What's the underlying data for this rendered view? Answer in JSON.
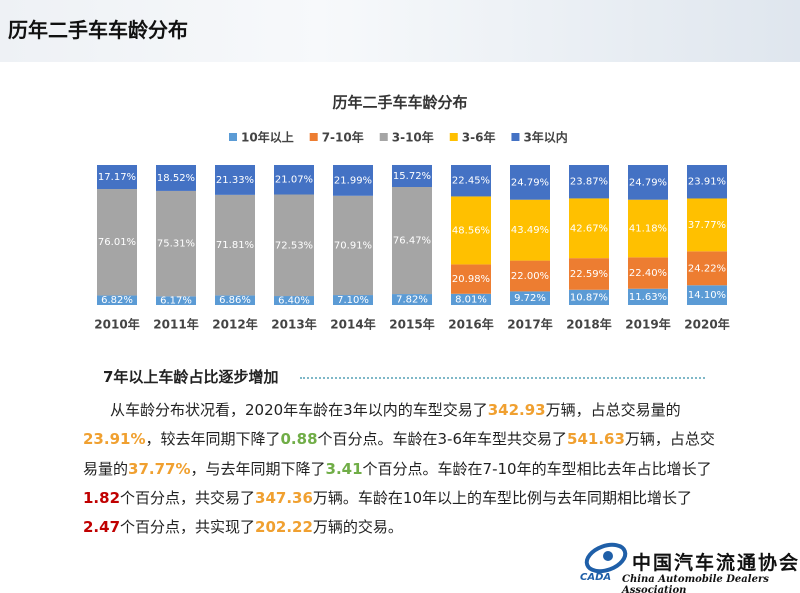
{
  "header": {
    "title": "历年二手车车龄分布"
  },
  "chart_data": {
    "type": "stacked_bar",
    "title": "历年二手车车龄分布",
    "categories": [
      "2010年",
      "2011年",
      "2012年",
      "2013年",
      "2014年",
      "2015年",
      "2016年",
      "2017年",
      "2018年",
      "2019年",
      "2020年"
    ],
    "ylim": [
      0,
      100
    ],
    "series": [
      {
        "name": "10年以上",
        "color": "#5b9bd5",
        "values": [
          6.82,
          6.17,
          6.86,
          6.4,
          7.1,
          7.82,
          8.01,
          9.72,
          10.87,
          11.63,
          14.1
        ],
        "value_labels": [
          "6.82%",
          "6.17%",
          "6.86%",
          "6.40%",
          "7.10%",
          "7.82%",
          "8.01%",
          "9.72%",
          "10.87%",
          "11.63%",
          "14.10%"
        ]
      },
      {
        "name": "7-10年",
        "color": "#ed7d31",
        "values": [
          null,
          null,
          null,
          null,
          null,
          null,
          20.98,
          22.0,
          22.59,
          22.4,
          24.22
        ],
        "value_labels": [
          null,
          null,
          null,
          null,
          null,
          null,
          "20.98%",
          "22.00%",
          "22.59%",
          "22.40%",
          "24.22%"
        ]
      },
      {
        "name": "3-10年",
        "color": "#a5a5a5",
        "values": [
          76.01,
          75.31,
          71.81,
          72.53,
          70.91,
          76.47,
          null,
          null,
          null,
          null,
          null
        ],
        "value_labels": [
          "76.01%",
          "75.31%",
          "71.81%",
          "72.53%",
          "70.91%",
          "76.47%",
          null,
          null,
          null,
          null,
          null
        ]
      },
      {
        "name": "3-6年",
        "color": "#ffc000",
        "values": [
          null,
          null,
          null,
          null,
          null,
          null,
          48.56,
          43.49,
          42.67,
          41.18,
          37.77
        ],
        "value_labels": [
          null,
          null,
          null,
          null,
          null,
          null,
          "48.56%",
          "43.49%",
          "42.67%",
          "41.18%",
          "37.77%"
        ]
      },
      {
        "name": "3年以内",
        "color": "#4472c4",
        "values": [
          17.17,
          18.52,
          21.33,
          21.07,
          21.99,
          15.72,
          22.45,
          24.79,
          23.87,
          24.79,
          23.91
        ],
        "value_labels": [
          "17.17%",
          "18.52%",
          "21.33%",
          "21.07%",
          "21.99%",
          "15.72%",
          "22.45%",
          "24.79%",
          "23.87%",
          "24.79%",
          "23.91%"
        ]
      }
    ]
  },
  "section": {
    "heading": "7年以上车龄占比逐步增加"
  },
  "paragraph": {
    "runs": [
      {
        "text": "从车龄分布状况看，2020年车龄在3年以内的车型交易了"
      },
      {
        "text": "342.93",
        "color": "#f0a030"
      },
      {
        "text": "万辆，占总交易量的"
      },
      {
        "text": "23.91%",
        "color": "#f0a030"
      },
      {
        "text": "，较去年同期下降了"
      },
      {
        "text": "0.88",
        "color": "#70ad47"
      },
      {
        "text": "个百分点。车龄在3-6年车型共交易了"
      },
      {
        "text": "541.63",
        "color": "#f0a030"
      },
      {
        "text": "万辆，占总交易量的"
      },
      {
        "text": "37.77%",
        "color": "#f0a030"
      },
      {
        "text": "，与去年同期下降了"
      },
      {
        "text": "3.41",
        "color": "#70ad47"
      },
      {
        "text": "个百分点。车龄在7-10年的车型相比去年占比增长了"
      },
      {
        "text": "1.82",
        "color": "#c00000"
      },
      {
        "text": "个百分点，共交易了"
      },
      {
        "text": "347.36",
        "color": "#f0a030"
      },
      {
        "text": "万辆。车龄在10年以上的车型比例与去年同期相比增长了"
      },
      {
        "text": "2.47",
        "color": "#c00000"
      },
      {
        "text": "个百分点，共实现了"
      },
      {
        "text": "202.22",
        "color": "#f0a030"
      },
      {
        "text": "万辆的交易。"
      }
    ]
  },
  "footer": {
    "org_cn": "中国汽车流通协会",
    "org_en": "China Automobile Dealers Association",
    "logo_text": "CADA"
  }
}
